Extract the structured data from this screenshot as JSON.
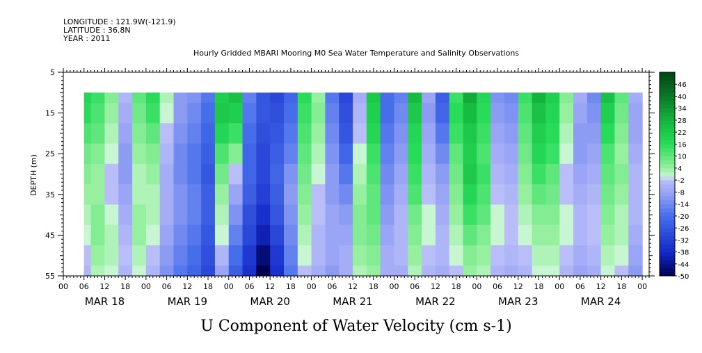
{
  "header": {
    "longitude": "LONGITUDE : 121.9W(-121.9)",
    "latitude": "LATITUDE : 36.8N",
    "year": "YEAR : 2011",
    "title": "Hourly Gridded MBARI Mooring M0 Sea Water Temperature and Salinity Observations"
  },
  "footer": {
    "variable_title": "U Component of Water Velocity (cm s-1)"
  },
  "chart_data": {
    "type": "heatmap",
    "title": "Hourly Gridded MBARI Mooring M0 Sea Water Temperature and Salinity Observations",
    "subtitle": "U Component of Water Velocity (cm s-1)",
    "xlabel": "",
    "ylabel": "DEPTH (m)",
    "y_range": [
      55,
      5
    ],
    "y_ticks": [
      5,
      15,
      25,
      35,
      45,
      55
    ],
    "x_range_hours": [
      0,
      170
    ],
    "data_x_range_hours": [
      6,
      168
    ],
    "data_y_range": [
      10,
      55
    ],
    "x_tick_labels": [
      "00",
      "06",
      "12",
      "18",
      "00",
      "06",
      "12",
      "18",
      "00",
      "06",
      "12",
      "18",
      "00",
      "06",
      "12",
      "18",
      "00",
      "06",
      "12",
      "18",
      "00",
      "06",
      "12",
      "18",
      "00",
      "06",
      "12",
      "18",
      "00"
    ],
    "day_labels": [
      "MAR 18",
      "MAR 19",
      "MAR 20",
      "MAR 21",
      "MAR 22",
      "MAR 23",
      "MAR 24"
    ],
    "colorbar": {
      "min": -50,
      "max": 52,
      "step": 2,
      "labels": [
        "46",
        "40",
        "34",
        "28",
        "22",
        "16",
        "10",
        "4",
        "-2",
        "-8",
        "-14",
        "-20",
        "-26",
        "-32",
        "-38",
        "-44",
        "-50"
      ]
    },
    "depths": [
      10,
      15,
      20,
      25,
      30,
      35,
      40,
      45,
      50,
      55
    ],
    "hours": [
      6,
      10,
      14,
      18,
      22,
      26,
      30,
      34,
      38,
      42,
      46,
      50,
      54,
      58,
      62,
      66,
      70,
      74,
      78,
      82,
      86,
      90,
      94,
      98,
      102,
      106,
      110,
      114,
      118,
      122,
      126,
      130,
      134,
      138,
      142,
      146,
      150,
      154,
      158,
      162,
      166
    ],
    "values": [
      [
        18,
        14,
        6,
        -4,
        10,
        16,
        2,
        -10,
        -12,
        -18,
        20,
        24,
        -16,
        -26,
        -30,
        -22,
        16,
        4,
        -18,
        -30,
        -6,
        22,
        -20,
        -16,
        26,
        -8,
        -24,
        14,
        30,
        18,
        -12,
        -14,
        14,
        28,
        20,
        6,
        -6,
        -14,
        24,
        10,
        -6
      ],
      [
        16,
        12,
        4,
        -6,
        8,
        14,
        0,
        -10,
        -14,
        -20,
        22,
        20,
        -18,
        -26,
        -28,
        -20,
        14,
        6,
        -16,
        -28,
        -4,
        20,
        -20,
        -14,
        22,
        -10,
        -22,
        16,
        26,
        16,
        -10,
        -12,
        12,
        24,
        18,
        4,
        -8,
        -12,
        20,
        8,
        -8
      ],
      [
        12,
        10,
        2,
        -8,
        6,
        10,
        -2,
        -12,
        -16,
        -22,
        18,
        14,
        -20,
        -28,
        -26,
        -18,
        12,
        4,
        -14,
        -26,
        -2,
        18,
        -18,
        -12,
        18,
        -8,
        -18,
        14,
        22,
        14,
        -8,
        -10,
        10,
        20,
        16,
        2,
        -10,
        -10,
        16,
        6,
        -8
      ],
      [
        8,
        6,
        0,
        -10,
        4,
        6,
        -4,
        -14,
        -18,
        -24,
        12,
        6,
        -22,
        -30,
        -24,
        -16,
        10,
        2,
        -12,
        -22,
        0,
        14,
        -16,
        -10,
        16,
        -6,
        -14,
        10,
        20,
        12,
        -6,
        -8,
        8,
        18,
        14,
        0,
        -10,
        -8,
        12,
        4,
        -6
      ],
      [
        6,
        4,
        -2,
        -10,
        2,
        4,
        -6,
        -14,
        -18,
        -26,
        8,
        -2,
        -22,
        -30,
        -22,
        -12,
        8,
        0,
        -10,
        -18,
        2,
        12,
        -14,
        -8,
        14,
        -4,
        -10,
        8,
        22,
        14,
        -4,
        -6,
        6,
        14,
        10,
        -2,
        -8,
        -6,
        10,
        6,
        -4
      ],
      [
        4,
        4,
        -2,
        -8,
        2,
        2,
        -6,
        -12,
        -16,
        -24,
        4,
        -8,
        -24,
        -32,
        -24,
        -10,
        6,
        -2,
        -10,
        -14,
        4,
        10,
        -12,
        -6,
        12,
        -2,
        -8,
        6,
        18,
        12,
        -2,
        -4,
        4,
        10,
        8,
        -2,
        -6,
        -4,
        8,
        4,
        -4
      ],
      [
        2,
        6,
        0,
        -6,
        4,
        2,
        -6,
        -12,
        -16,
        -24,
        2,
        -12,
        -28,
        -36,
        -26,
        -12,
        4,
        -2,
        -8,
        -10,
        6,
        10,
        -10,
        -4,
        8,
        0,
        -6,
        4,
        14,
        10,
        0,
        -2,
        2,
        6,
        6,
        0,
        -4,
        -2,
        6,
        2,
        -4
      ],
      [
        0,
        6,
        2,
        -4,
        4,
        0,
        -8,
        -14,
        -18,
        -26,
        0,
        -16,
        -30,
        -40,
        -30,
        -14,
        2,
        -4,
        -8,
        -8,
        6,
        8,
        -8,
        -4,
        6,
        0,
        -4,
        2,
        10,
        6,
        0,
        -2,
        0,
        4,
        4,
        0,
        -4,
        -2,
        4,
        2,
        -6
      ],
      [
        -2,
        4,
        2,
        -2,
        2,
        -2,
        -10,
        -16,
        -20,
        -28,
        -4,
        -20,
        -34,
        -46,
        -34,
        -16,
        0,
        -4,
        -8,
        -6,
        4,
        6,
        -6,
        -4,
        4,
        -2,
        -4,
        0,
        6,
        4,
        -2,
        -4,
        -2,
        2,
        2,
        -2,
        -6,
        -4,
        2,
        0,
        -8
      ],
      [
        -4,
        2,
        0,
        -4,
        0,
        -4,
        -12,
        -18,
        -22,
        -30,
        -8,
        -24,
        -36,
        -50,
        -36,
        -18,
        -2,
        -6,
        -10,
        -6,
        2,
        4,
        -6,
        -6,
        2,
        -4,
        -6,
        -2,
        4,
        2,
        -4,
        -6,
        -4,
        0,
        0,
        -4,
        -8,
        -6,
        0,
        -2,
        -10
      ]
    ]
  }
}
